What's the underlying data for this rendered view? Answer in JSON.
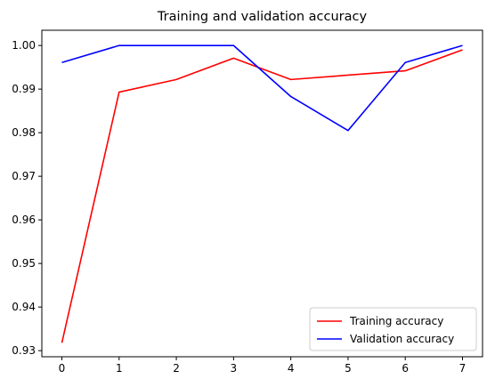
{
  "chart_data": {
    "type": "line",
    "title": "Training and validation accuracy",
    "xlabel": "",
    "ylabel": "",
    "x": [
      0,
      1,
      2,
      3,
      4,
      5,
      6,
      7
    ],
    "xlim": [
      -0.35,
      7.35
    ],
    "ylim": [
      0.9286,
      1.0035
    ],
    "xticks": [
      0,
      1,
      2,
      3,
      4,
      5,
      6,
      7
    ],
    "yticks": [
      "0.93",
      "0.94",
      "0.95",
      "0.96",
      "0.97",
      "0.98",
      "0.99",
      "1.00"
    ],
    "grid": false,
    "legend_position": "lower-right",
    "series": [
      {
        "name": "Training accuracy",
        "color": "#ff0000",
        "values": [
          0.9318,
          0.9893,
          0.9922,
          0.9971,
          0.9922,
          0.9932,
          0.9942,
          0.999
        ]
      },
      {
        "name": "Validation accuracy",
        "color": "#0000ff",
        "values": [
          0.9961,
          1.0,
          1.0,
          1.0,
          0.9883,
          0.9805,
          0.9961,
          1.0
        ]
      }
    ]
  }
}
